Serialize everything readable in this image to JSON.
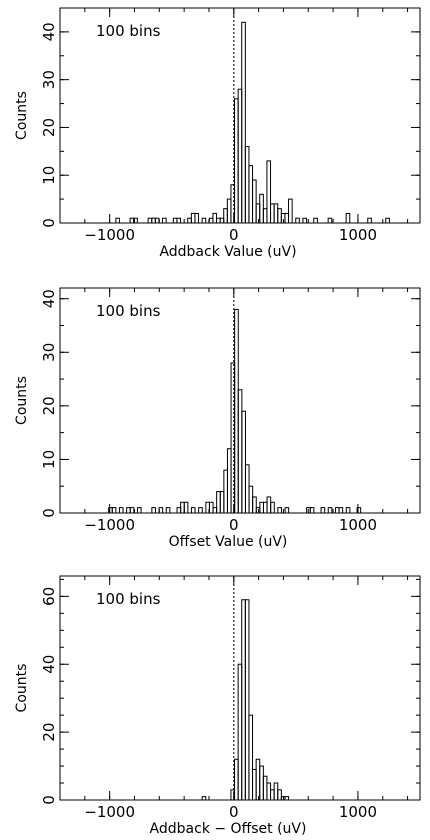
{
  "chart_data": [
    {
      "type": "bar",
      "annotation": "100 bins",
      "xlabel": "Addback Value (uV)",
      "ylabel": "Counts",
      "xlim": [
        -1400,
        1500
      ],
      "ylim": [
        0,
        45
      ],
      "xticks": [
        -1000,
        0,
        1000
      ],
      "xtick_labels": [
        "−1000",
        "0",
        "1000"
      ],
      "yticks": [
        0,
        10,
        20,
        30,
        40
      ],
      "yminor_step": 5,
      "xminor_step": 200,
      "reference_line_x": 0,
      "bin_width": 29,
      "bars": [
        {
          "x": -950,
          "count": 1
        },
        {
          "x": -835,
          "count": 1
        },
        {
          "x": -806,
          "count": 1
        },
        {
          "x": -690,
          "count": 1
        },
        {
          "x": -661,
          "count": 1
        },
        {
          "x": -632,
          "count": 1
        },
        {
          "x": -574,
          "count": 1
        },
        {
          "x": -487,
          "count": 1
        },
        {
          "x": -458,
          "count": 1
        },
        {
          "x": -371,
          "count": 1
        },
        {
          "x": -342,
          "count": 2
        },
        {
          "x": -313,
          "count": 2
        },
        {
          "x": -255,
          "count": 1
        },
        {
          "x": -197,
          "count": 1
        },
        {
          "x": -168,
          "count": 2
        },
        {
          "x": -139,
          "count": 1
        },
        {
          "x": -110,
          "count": 1
        },
        {
          "x": -81,
          "count": 3
        },
        {
          "x": -52,
          "count": 5
        },
        {
          "x": -23,
          "count": 8
        },
        {
          "x": 6,
          "count": 26
        },
        {
          "x": 35,
          "count": 28
        },
        {
          "x": 64,
          "count": 42
        },
        {
          "x": 93,
          "count": 16
        },
        {
          "x": 122,
          "count": 12
        },
        {
          "x": 151,
          "count": 9
        },
        {
          "x": 180,
          "count": 4
        },
        {
          "x": 209,
          "count": 6
        },
        {
          "x": 238,
          "count": 3
        },
        {
          "x": 267,
          "count": 13
        },
        {
          "x": 296,
          "count": 4
        },
        {
          "x": 325,
          "count": 4
        },
        {
          "x": 354,
          "count": 3
        },
        {
          "x": 383,
          "count": 2
        },
        {
          "x": 412,
          "count": 2
        },
        {
          "x": 441,
          "count": 5
        },
        {
          "x": 499,
          "count": 1
        },
        {
          "x": 557,
          "count": 1
        },
        {
          "x": 644,
          "count": 1
        },
        {
          "x": 760,
          "count": 1
        },
        {
          "x": 905,
          "count": 2
        },
        {
          "x": 1079,
          "count": 1
        },
        {
          "x": 1224,
          "count": 1
        }
      ]
    },
    {
      "type": "bar",
      "annotation": "100 bins",
      "xlabel": "Offset Value (uV)",
      "ylabel": "Counts",
      "xlim": [
        -1400,
        1500
      ],
      "ylim": [
        0,
        42
      ],
      "xticks": [
        -1000,
        0,
        1000
      ],
      "xtick_labels": [
        "−1000",
        "0",
        "1000"
      ],
      "yticks": [
        0,
        10,
        20,
        30,
        40
      ],
      "yminor_step": 5,
      "xminor_step": 200,
      "reference_line_x": 0,
      "bin_width": 29,
      "bars": [
        {
          "x": -1008,
          "count": 1
        },
        {
          "x": -979,
          "count": 1
        },
        {
          "x": -921,
          "count": 1
        },
        {
          "x": -863,
          "count": 1
        },
        {
          "x": -834,
          "count": 1
        },
        {
          "x": -776,
          "count": 1
        },
        {
          "x": -660,
          "count": 1
        },
        {
          "x": -602,
          "count": 1
        },
        {
          "x": -544,
          "count": 1
        },
        {
          "x": -457,
          "count": 1
        },
        {
          "x": -428,
          "count": 2
        },
        {
          "x": -399,
          "count": 2
        },
        {
          "x": -341,
          "count": 1
        },
        {
          "x": -283,
          "count": 1
        },
        {
          "x": -225,
          "count": 2
        },
        {
          "x": -196,
          "count": 2
        },
        {
          "x": -167,
          "count": 1
        },
        {
          "x": -138,
          "count": 4
        },
        {
          "x": -109,
          "count": 4
        },
        {
          "x": -80,
          "count": 8
        },
        {
          "x": -51,
          "count": 12
        },
        {
          "x": -22,
          "count": 28
        },
        {
          "x": 7,
          "count": 38
        },
        {
          "x": 36,
          "count": 23
        },
        {
          "x": 65,
          "count": 19
        },
        {
          "x": 94,
          "count": 9
        },
        {
          "x": 123,
          "count": 5
        },
        {
          "x": 152,
          "count": 3
        },
        {
          "x": 181,
          "count": 1
        },
        {
          "x": 210,
          "count": 2
        },
        {
          "x": 239,
          "count": 2
        },
        {
          "x": 268,
          "count": 3
        },
        {
          "x": 297,
          "count": 2
        },
        {
          "x": 355,
          "count": 1
        },
        {
          "x": 413,
          "count": 1
        },
        {
          "x": 587,
          "count": 1
        },
        {
          "x": 616,
          "count": 1
        },
        {
          "x": 703,
          "count": 1
        },
        {
          "x": 761,
          "count": 1
        },
        {
          "x": 819,
          "count": 1
        },
        {
          "x": 848,
          "count": 1
        },
        {
          "x": 906,
          "count": 1
        },
        {
          "x": 993,
          "count": 1
        }
      ]
    },
    {
      "type": "bar",
      "annotation": "100 bins",
      "xlabel": "Addback − Offset (uV)",
      "ylabel": "Counts",
      "xlim": [
        -1400,
        1500
      ],
      "ylim": [
        0,
        66
      ],
      "xticks": [
        -1000,
        0,
        1000
      ],
      "xtick_labels": [
        "−1000",
        "0",
        "1000"
      ],
      "yticks": [
        0,
        20,
        40,
        60
      ],
      "yminor_step": 5,
      "xminor_step": 200,
      "reference_line_x": 0,
      "bin_width": 29,
      "bars": [
        {
          "x": -255,
          "count": 1
        },
        {
          "x": -23,
          "count": 3
        },
        {
          "x": 6,
          "count": 12
        },
        {
          "x": 35,
          "count": 40
        },
        {
          "x": 64,
          "count": 59
        },
        {
          "x": 93,
          "count": 59
        },
        {
          "x": 122,
          "count": 25
        },
        {
          "x": 151,
          "count": 9
        },
        {
          "x": 180,
          "count": 12
        },
        {
          "x": 209,
          "count": 10
        },
        {
          "x": 238,
          "count": 7
        },
        {
          "x": 267,
          "count": 5
        },
        {
          "x": 296,
          "count": 3
        },
        {
          "x": 325,
          "count": 5
        },
        {
          "x": 354,
          "count": 3
        },
        {
          "x": 383,
          "count": 1
        },
        {
          "x": 412,
          "count": 1
        }
      ]
    }
  ]
}
